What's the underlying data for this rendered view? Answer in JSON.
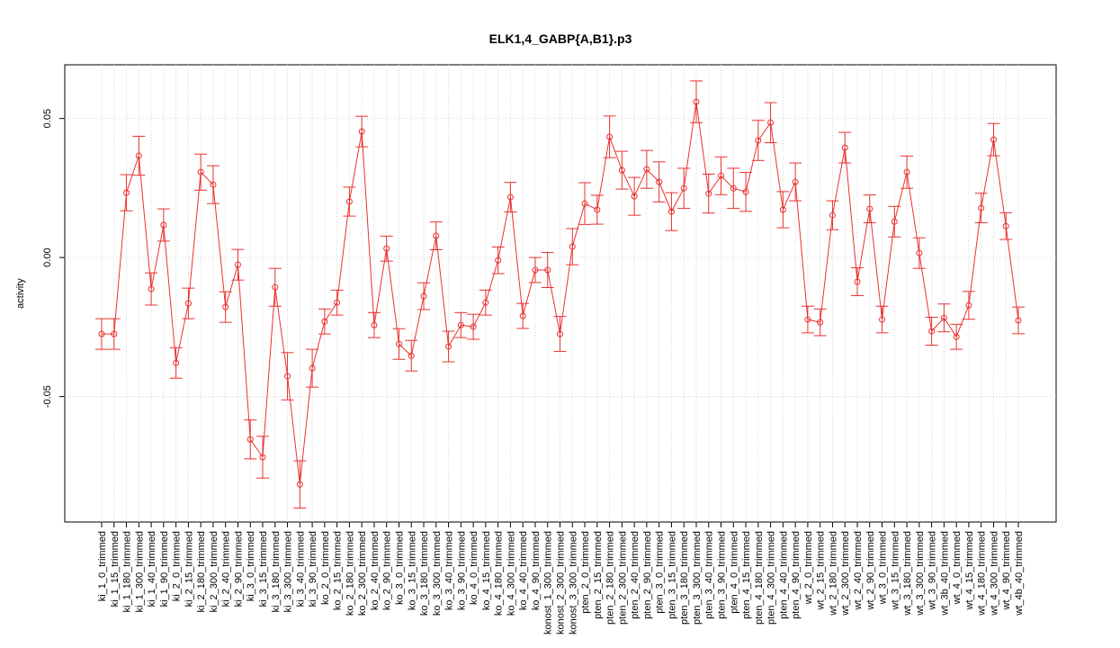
{
  "chart_data": {
    "type": "line",
    "title": "ELK1,4_GABP{A,B1}.p3",
    "y_label": "activity",
    "color": "#e8322f",
    "grid": true,
    "ylim": [
      -0.0951,
      0.0693
    ],
    "yticks": [
      -0.05,
      {
        "value": 0,
        "label": "0.00"
      },
      0.05
    ],
    "categories": [
      "ki_1_0_trimmed",
      "ki_1_15_trimmed",
      "ki_1_180_trimmed",
      "ki_1_300_trimmed",
      "ki_1_40_trimmed",
      "ki_1_90_trimmed",
      "ki_2_0_trimmed",
      "ki_2_15_trimmed",
      "ki_2_180_trimmed",
      "ki_2_300_trimmed",
      "ki_2_40_trimmed",
      "ki_2_90_trimmed",
      "ki_3_0_trimmed",
      "ki_3_15_trimmed",
      "ki_3_180_trimmed",
      "ki_3_300_trimmed",
      "ki_3_40_trimmed",
      "ki_3_90_trimmed",
      "ko_2_0_trimmed",
      "ko_2_15_trimmed",
      "ko_2_180_trimmed",
      "ko_2_300_trimmed",
      "ko_2_40_trimmed",
      "ko_2_90_trimmed",
      "ko_3_0_trimmed",
      "ko_3_15_trimmed",
      "ko_3_180_trimmed",
      "ko_3_300_trimmed",
      "ko_3_40_trimmed",
      "ko_3_90_trimmed",
      "ko_4_0_trimmed",
      "ko_4_15_trimmed",
      "ko_4_180_trimmed",
      "ko_4_300_trimmed",
      "ko_4_40_trimmed",
      "ko_4_90_trimmed",
      "konost_1_300_trimmed",
      "konost_2_300_trimmed",
      "konost_3_300_trimmed",
      "pten_2_0_trimmed",
      "pten_2_15_trimmed",
      "pten_2_180_trimmed",
      "pten_2_300_trimmed",
      "pten_2_40_trimmed",
      "pten_2_90_trimmed",
      "pten_3_0_trimmed",
      "pten_3_15_trimmed",
      "pten_3_180_trimmed",
      "pten_3_300_trimmed",
      "pten_3_40_trimmed",
      "pten_3_90_trimmed",
      "pten_4_0_trimmed",
      "pten_4_15_trimmed",
      "pten_4_180_trimmed",
      "pten_4_300_trimmed",
      "pten_4_40_trimmed",
      "pten_4_90_trimmed",
      "wt_2_0_trimmed",
      "wt_2_15_trimmed",
      "wt_2_180_trimmed",
      "wt_2_300_trimmed",
      "wt_2_40_trimmed",
      "wt_2_90_trimmed",
      "wt_3_0_trimmed",
      "wt_3_15_trimmed",
      "wt_3_180_trimmed",
      "wt_3_300_trimmed",
      "wt_3_90_trimmed",
      "wt_3b_40_trimmed",
      "wt_4_0_trimmed",
      "wt_4_15_trimmed",
      "wt_4_180_trimmed",
      "wt_4_300_trimmed",
      "wt_4_90_trimmed",
      "wt_4b_40_trimmed"
    ],
    "values": [
      -0.0275,
      -0.0275,
      0.0233,
      0.0366,
      -0.0113,
      0.0117,
      -0.0379,
      -0.0165,
      0.0307,
      0.0262,
      -0.0178,
      -0.0026,
      -0.0654,
      -0.0718,
      -0.0107,
      -0.0427,
      -0.0816,
      -0.0398,
      -0.023,
      -0.0162,
      0.0201,
      0.0453,
      -0.0243,
      0.0032,
      -0.0311,
      -0.0353,
      -0.0139,
      0.0078,
      -0.032,
      -0.0243,
      -0.0249,
      -0.0162,
      -0.001,
      0.0217,
      -0.021,
      -0.0045,
      -0.0045,
      -0.0275,
      0.0039,
      0.0194,
      0.0172,
      0.0434,
      0.0314,
      0.022,
      0.0317,
      0.0272,
      0.0165,
      0.0249,
      0.056,
      0.023,
      0.0294,
      0.0249,
      0.0236,
      0.0421,
      0.0485,
      0.0172,
      0.0272,
      -0.0223,
      -0.0233,
      0.0152,
      0.0395,
      -0.0087,
      0.0175,
      -0.0223,
      0.0129,
      0.0307,
      0.0016,
      -0.0265,
      -0.0217,
      -0.0285,
      -0.0172,
      0.0178,
      0.0424,
      0.0113,
      -0.0226
    ],
    "errors": [
      0.0055,
      0.0055,
      0.0065,
      0.007,
      0.0058,
      0.0058,
      0.0055,
      0.0055,
      0.0065,
      0.0068,
      0.0055,
      0.0055,
      0.007,
      0.0075,
      0.0068,
      0.0085,
      0.0085,
      0.0068,
      0.0045,
      0.0045,
      0.0052,
      0.0055,
      0.0045,
      0.0045,
      0.0055,
      0.0055,
      0.0048,
      0.005,
      0.0055,
      0.0045,
      0.0045,
      0.0045,
      0.0048,
      0.0053,
      0.0045,
      0.0045,
      0.0063,
      0.0063,
      0.0065,
      0.0075,
      0.0052,
      0.0075,
      0.0068,
      0.0068,
      0.0068,
      0.0072,
      0.0068,
      0.0072,
      0.0075,
      0.007,
      0.0068,
      0.0072,
      0.007,
      0.0072,
      0.0072,
      0.0065,
      0.0068,
      0.0048,
      0.0048,
      0.0052,
      0.0055,
      0.005,
      0.005,
      0.0048,
      0.0055,
      0.0058,
      0.0055,
      0.005,
      0.005,
      0.0045,
      0.005,
      0.0053,
      0.0058,
      0.0048,
      0.0048
    ]
  }
}
